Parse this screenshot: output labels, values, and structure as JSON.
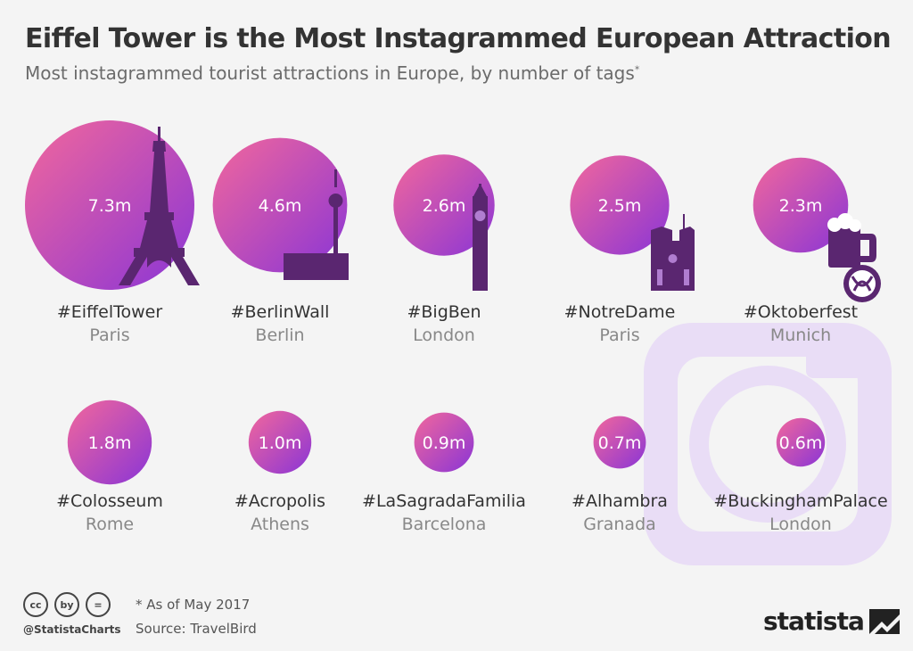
{
  "title": "Eiffel Tower is the Most Instagrammed European Attraction",
  "subtitle": "Most instagrammed tourist attractions in Europe, by number of tags",
  "subtitle_mark": "*",
  "chart_data": {
    "type": "bubble",
    "unit": "m",
    "values": [
      7.3,
      4.6,
      2.6,
      2.5,
      2.3,
      1.8,
      1.0,
      0.9,
      0.7,
      0.6
    ],
    "value_labels": [
      "7.3m",
      "4.6m",
      "2.6m",
      "2.5m",
      "2.3m",
      "1.8m",
      "1.0m",
      "0.9m",
      "0.7m",
      "0.6m"
    ],
    "tags": [
      "#EiffelTower",
      "#BerlinWall",
      "#BigBen",
      "#NotreDame",
      "#Oktoberfest",
      "#Colosseum",
      "#Acropolis",
      "#LaSagradaFamilia",
      "#Alhambra",
      "#BuckinghamPalace"
    ],
    "cities": [
      "Paris",
      "Berlin",
      "London",
      "Paris",
      "Munich",
      "Rome",
      "Athens",
      "Barcelona",
      "Granada",
      "London"
    ],
    "icons": [
      "eiffel-tower-icon",
      "tv-tower-icon",
      "big-ben-icon",
      "notre-dame-icon",
      "beer-pretzel-icon",
      null,
      null,
      null,
      null,
      null
    ],
    "colors": {
      "bubble_start": "#f2679c",
      "bubble_end": "#8a35d6",
      "icon": "#5a2670",
      "label": "#333333",
      "city": "#888888",
      "watermark": "#e9ddf6"
    }
  },
  "watermark_icon": "instagram-logo-icon",
  "footer": {
    "cc_icons": [
      "cc",
      "by",
      "="
    ],
    "handle": "@StatistaCharts",
    "note": "* As of May 2017",
    "source": "Source: TravelBird",
    "brand": "statista"
  }
}
